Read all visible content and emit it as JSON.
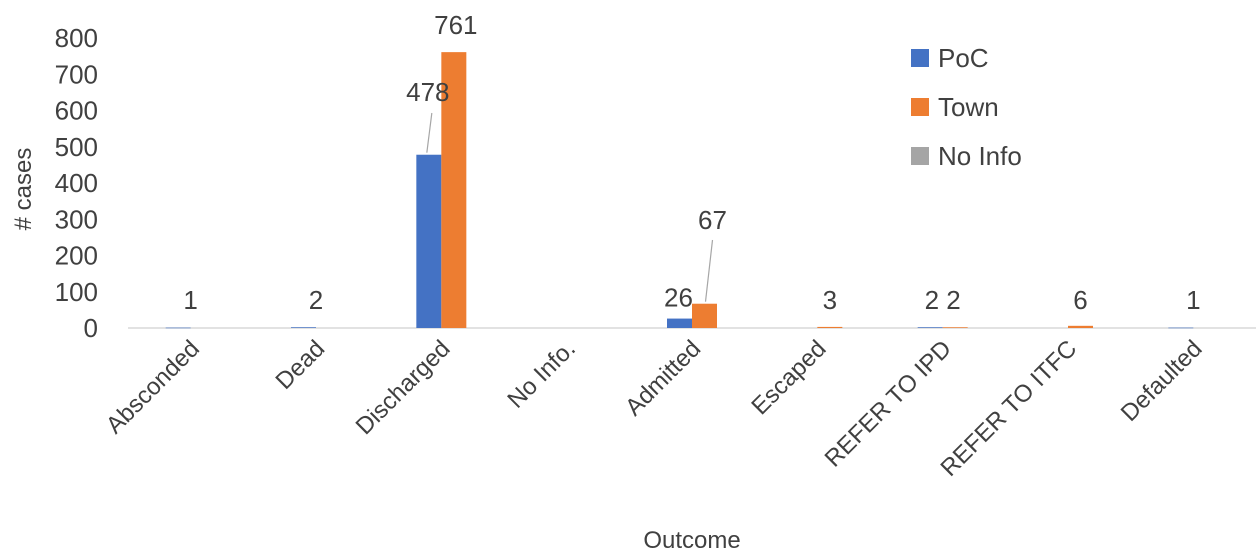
{
  "chart_data": {
    "type": "bar",
    "xlabel": "Outcome",
    "ylabel": "# cases",
    "ylim": [
      0,
      800
    ],
    "yticks": [
      0,
      100,
      200,
      300,
      400,
      500,
      600,
      700,
      800
    ],
    "grid": false,
    "legend_position": "top-right",
    "categories": [
      "Absconded",
      "Dead",
      "Discharged",
      "No Info.",
      "Admitted",
      "Escaped",
      "REFER TO IPD",
      "REFER TO ITFC",
      "Defaulted"
    ],
    "series": [
      {
        "name": "PoC",
        "color": "#4472c4",
        "values": [
          1,
          2,
          478,
          null,
          26,
          null,
          2,
          null,
          1
        ]
      },
      {
        "name": "Town",
        "color": "#ed7d31",
        "values": [
          null,
          null,
          761,
          null,
          67,
          3,
          2,
          6,
          null
        ]
      },
      {
        "name": "No Info",
        "color": "#a5a5a5",
        "values": [
          null,
          null,
          null,
          null,
          null,
          null,
          null,
          null,
          null
        ]
      }
    ],
    "data_labels": [
      {
        "category": "Absconded",
        "text": "1"
      },
      {
        "category": "Dead",
        "text": "2"
      },
      {
        "category": "Discharged",
        "series": "PoC",
        "text": "478"
      },
      {
        "category": "Discharged",
        "series": "Town",
        "text": "761"
      },
      {
        "category": "Admitted",
        "series": "PoC",
        "text": "26"
      },
      {
        "category": "Admitted",
        "series": "Town",
        "text": "67"
      },
      {
        "category": "Escaped",
        "text": "3"
      },
      {
        "category": "REFER TO IPD",
        "text": "2 2"
      },
      {
        "category": "REFER TO ITFC",
        "text": "6"
      },
      {
        "category": "Defaulted",
        "text": "1"
      }
    ]
  }
}
